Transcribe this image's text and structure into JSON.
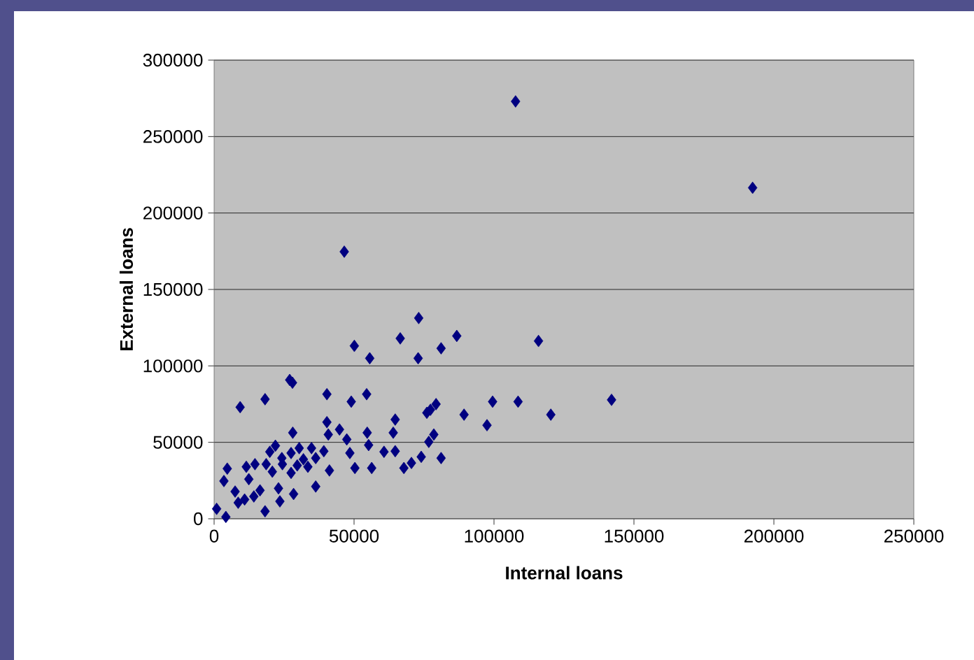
{
  "chart_data": {
    "type": "scatter",
    "xlabel": "Internal loans",
    "ylabel": "External loans",
    "xlim": [
      0,
      250000
    ],
    "xticks": [
      0,
      50000,
      100000,
      150000,
      200000,
      250000
    ],
    "ylim": [
      0,
      300000
    ],
    "yticks": [
      0,
      50000,
      100000,
      150000,
      200000,
      250000,
      300000
    ],
    "grid": "y",
    "marker": "diamond",
    "series": [
      {
        "color": "#000080",
        "x": [
          107700,
          192400,
          46500,
          73100,
          86700,
          66500,
          115900,
          50100,
          81100,
          55600,
          72900,
          27000,
          28000,
          40300,
          54500,
          18200,
          142000,
          9300,
          49000,
          99500,
          108600,
          79300,
          77300,
          76000,
          89300,
          120300,
          64700,
          97500,
          40300,
          28100,
          44800,
          54700,
          64000,
          40800,
          47400,
          78500,
          76700,
          21900,
          55200,
          30400,
          34800,
          19900,
          27500,
          39200,
          60700,
          64700,
          48500,
          11500,
          4700,
          14600,
          18600,
          24400,
          29700,
          33500,
          41200,
          50300,
          56300,
          67800,
          70500,
          74000,
          81100,
          36300,
          20800,
          27500,
          3500,
          12400,
          16400,
          23000,
          7500,
          10900,
          14200,
          28400,
          23500,
          36300,
          18200,
          900,
          4200,
          8600,
          31900,
          24200
        ],
        "values": [
          273000,
          216500,
          174700,
          131300,
          119600,
          118000,
          116300,
          113100,
          111500,
          105000,
          105000,
          90800,
          89000,
          81500,
          81500,
          78200,
          77800,
          73000,
          76600,
          76600,
          76600,
          75000,
          71300,
          69300,
          68100,
          68100,
          64900,
          61200,
          63200,
          56300,
          58400,
          56300,
          56300,
          55100,
          51900,
          55100,
          50300,
          47800,
          48200,
          46200,
          46200,
          43800,
          43000,
          44200,
          43800,
          44200,
          43000,
          34000,
          32800,
          35700,
          35700,
          35700,
          34900,
          34000,
          31600,
          33200,
          33200,
          33200,
          36500,
          40500,
          39700,
          39700,
          30800,
          30000,
          24700,
          25900,
          18600,
          19900,
          17800,
          12600,
          14600,
          16200,
          11400,
          21100,
          4900,
          6500,
          1200,
          10500,
          38900,
          39700
        ]
      }
    ]
  }
}
